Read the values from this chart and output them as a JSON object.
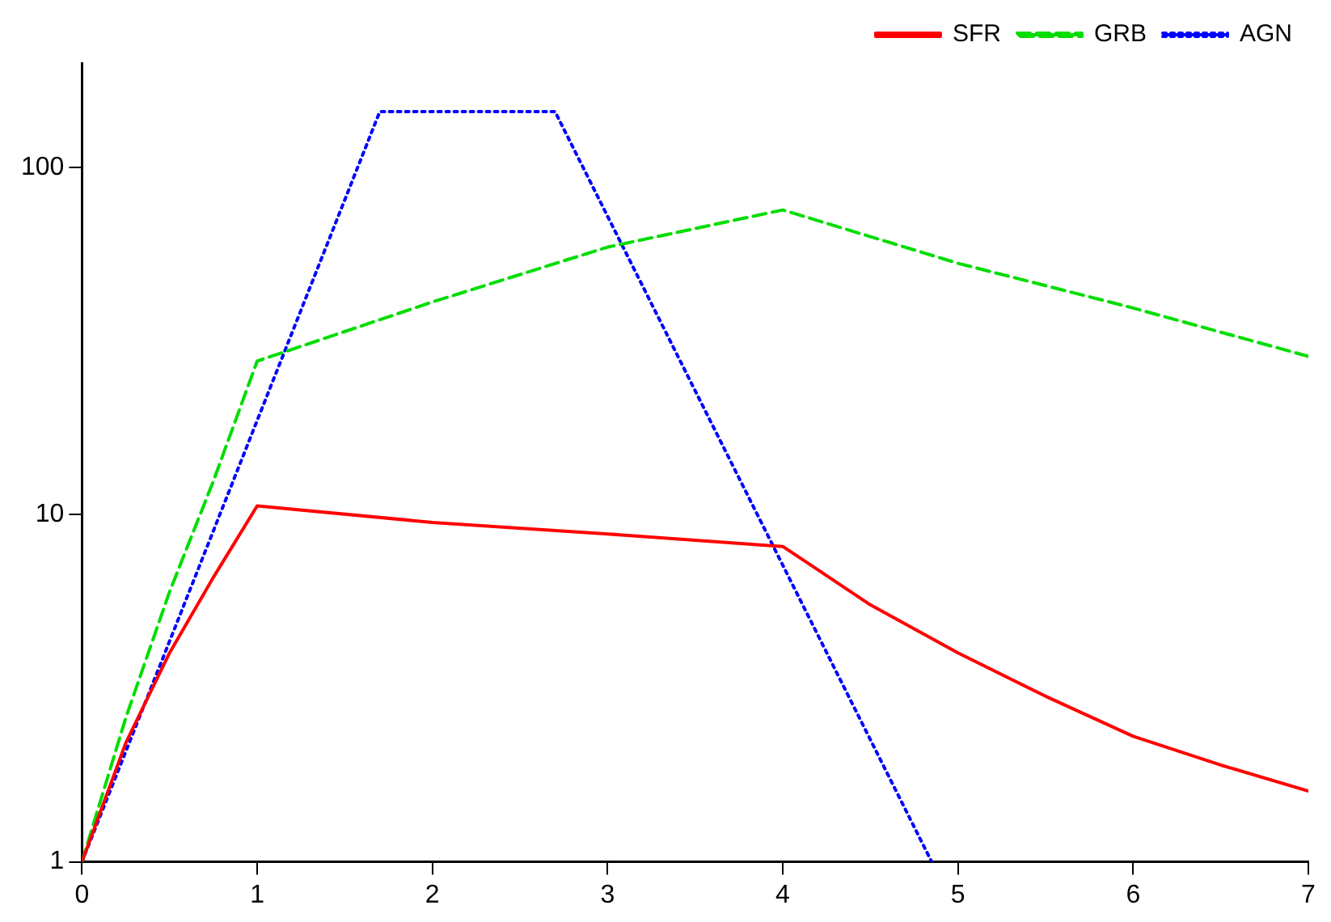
{
  "chart_data": {
    "type": "line",
    "log": "y",
    "xlim": [
      0,
      7
    ],
    "ylim": [
      1,
      200
    ],
    "xticks": [
      0,
      1,
      2,
      3,
      4,
      5,
      6,
      7
    ],
    "yticks": [
      1,
      10,
      100
    ],
    "grid": false,
    "legend": "top right",
    "marker": "none",
    "series": [
      {
        "name": "SFR",
        "color": "#ff0000",
        "line_style": "solid",
        "x": [
          0,
          0.25,
          0.5,
          0.75,
          1,
          2,
          3,
          4,
          4.5,
          5,
          5.5,
          6,
          6.5,
          7
        ],
        "values": [
          1,
          2.2,
          4,
          6.6,
          10.6,
          9.5,
          8.8,
          8.1,
          5.5,
          4,
          3,
          2.3,
          1.9,
          1.6
        ]
      },
      {
        "name": "GRB",
        "color": "#00dd00",
        "line_style": "dashed",
        "x": [
          0,
          0.25,
          0.5,
          0.75,
          1,
          2,
          3,
          4,
          5,
          6,
          7
        ],
        "values": [
          1,
          2.6,
          6,
          12.5,
          27.7,
          41,
          59,
          75.5,
          53,
          39.4,
          28.6
        ]
      },
      {
        "name": "AGN",
        "color": "#0000ff",
        "line_style": "dotted",
        "x": [
          0,
          1.7,
          2.7,
          4.85
        ],
        "values": [
          1,
          145,
          145,
          1
        ]
      }
    ]
  }
}
